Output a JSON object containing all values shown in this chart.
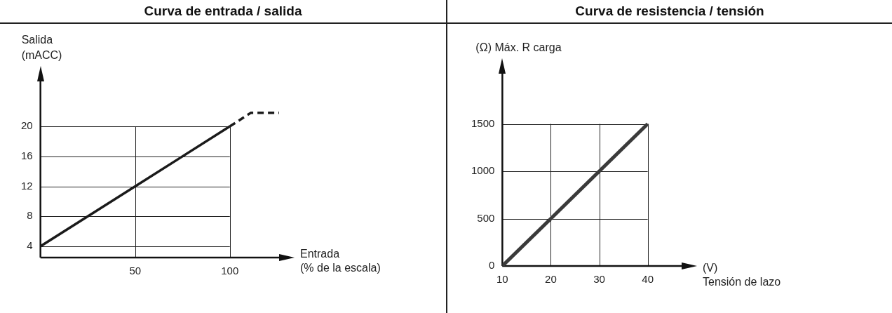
{
  "chart_data": [
    {
      "type": "line",
      "title": "Curva de entrada / salida",
      "ylabel": "Salida\n(mACC)",
      "xlabel": "Entrada\n(% de la escala)",
      "xlim": [
        0,
        126
      ],
      "ylim": [
        2.5,
        26
      ],
      "xticks": [
        50,
        100
      ],
      "yticks": [
        4,
        8,
        12,
        16,
        20
      ],
      "grid": true,
      "marker": "none",
      "series": [
        {
          "color": "#1a1a1a",
          "x": [
            0,
            100
          ],
          "values": [
            4,
            20
          ],
          "line_style": "solid"
        },
        {
          "color": "#1a1a1a",
          "x": [
            100,
            111,
            126
          ],
          "values": [
            20,
            21.8,
            21.8
          ],
          "line_style": "dashed"
        }
      ]
    },
    {
      "type": "line",
      "title": "Curva de resistencia / tensión",
      "ylabel": "(Ω) Máx. R carga",
      "xlabel": "(V)\nTensión de lazo",
      "xlim": [
        10,
        47
      ],
      "ylim": [
        0,
        2030
      ],
      "xticks": [
        10,
        20,
        30,
        40
      ],
      "yticks": [
        0,
        500,
        1000,
        1500
      ],
      "grid": true,
      "marker": "none",
      "series": [
        {
          "color": "#3a3a3a",
          "x": [
            10,
            40
          ],
          "values": [
            0,
            1500
          ],
          "line_style": "solid"
        }
      ]
    }
  ]
}
